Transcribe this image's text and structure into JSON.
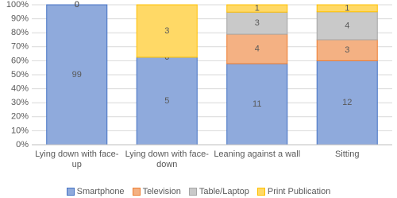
{
  "chart_data": {
    "type": "bar",
    "stack": "percent",
    "categories": [
      "Lying down with face-up",
      "Lying down with face-down",
      "Leaning against a wall",
      "Sitting"
    ],
    "series": [
      {
        "name": "Smartphone",
        "color": "#8faadc",
        "edge": "#4472c4",
        "values": [
          99,
          5,
          11,
          12
        ]
      },
      {
        "name": "Television",
        "color": "#f4b183",
        "edge": "#ed7d31",
        "values": [
          0,
          0,
          4,
          3
        ]
      },
      {
        "name": "Table/Laptop",
        "color": "#c9c9c9",
        "edge": "#a5a5a5",
        "values": [
          0,
          0,
          3,
          4
        ]
      },
      {
        "name": "Print Publication",
        "color": "#ffd966",
        "edge": "#ffc000",
        "values": [
          0,
          3,
          1,
          1
        ]
      }
    ],
    "ylim": [
      0,
      100
    ],
    "yticks": [
      {
        "value": 0,
        "label": "0%"
      },
      {
        "value": 10,
        "label": "10%"
      },
      {
        "value": 20,
        "label": "20%"
      },
      {
        "value": 30,
        "label": "30%"
      },
      {
        "value": 40,
        "label": "40%"
      },
      {
        "value": 50,
        "label": "50%"
      },
      {
        "value": 60,
        "label": "60%"
      },
      {
        "value": 70,
        "label": "70%"
      },
      {
        "value": 80,
        "label": "80%"
      },
      {
        "value": 90,
        "label": "90%"
      },
      {
        "value": 100,
        "label": "100%"
      }
    ],
    "grid": true,
    "legend": "bottom"
  }
}
